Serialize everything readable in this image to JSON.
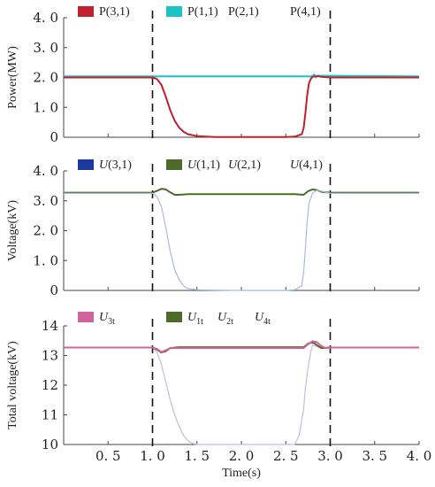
{
  "chart_data": [
    {
      "type": "line",
      "ylabel": "Power(MW)",
      "xlim": [
        0,
        4
      ],
      "ylim": [
        0,
        4
      ],
      "yticks": [
        "0",
        "1. 0",
        "2. 0",
        "3. 0",
        "4. 0"
      ],
      "event_lines_x": [
        1.0,
        3.0
      ],
      "legend": [
        {
          "key": "P",
          "sub": "(3,1)",
          "color": "#c0202b"
        },
        {
          "key": "P",
          "sub": "(1,1)",
          "color": "#19c3c8"
        },
        {
          "key": "P",
          "sub": "(2,1)",
          "color": ""
        },
        {
          "key": "P",
          "sub": "(4,1)",
          "color": ""
        }
      ],
      "series": [
        {
          "color": "#19c3c8",
          "x": [
            0,
            2.8,
            2.82,
            2.84,
            2.86,
            4
          ],
          "y": [
            2.04,
            2.04,
            2.1,
            2.0,
            2.06,
            2.04
          ]
        },
        {
          "color": "#c0202b",
          "x": [
            0,
            0.9,
            1.0,
            1.05,
            1.1,
            1.15,
            1.2,
            1.25,
            1.3,
            1.35,
            1.4,
            1.5,
            1.6,
            1.7,
            1.8,
            2.0,
            2.5,
            2.6,
            2.68,
            2.7,
            2.72,
            2.74,
            2.76,
            2.78,
            2.8,
            2.85,
            2.9,
            3.0,
            4
          ],
          "y": [
            2.0,
            2.0,
            2.0,
            1.95,
            1.75,
            1.35,
            0.9,
            0.55,
            0.32,
            0.18,
            0.1,
            0.04,
            0.02,
            0.01,
            0.01,
            0.01,
            0.01,
            0.02,
            0.1,
            0.3,
            0.8,
            1.4,
            1.8,
            1.95,
            2.02,
            2.05,
            2.02,
            2.0,
            2.0
          ]
        }
      ]
    },
    {
      "type": "line",
      "ylabel": "Voltage(kV)",
      "xlim": [
        0,
        4
      ],
      "ylim": [
        0,
        4
      ],
      "yticks": [
        "0",
        "1. 0",
        "2. 0",
        "3. 0",
        "4. 0"
      ],
      "event_lines_x": [
        1.0,
        3.0
      ],
      "legend": [
        {
          "key": "U",
          "sub": "(3,1)",
          "color": "#1c3a9e"
        },
        {
          "key": "U",
          "sub": "(1,1)",
          "color": "#4f6b2a"
        },
        {
          "key": "U",
          "sub": "(2,1)",
          "color": ""
        },
        {
          "key": "U",
          "sub": "(4,1)",
          "color": ""
        }
      ],
      "series": [
        {
          "color": "#4f6b2a",
          "x": [
            0,
            1.0,
            1.05,
            1.1,
            1.15,
            1.2,
            1.25,
            1.3,
            1.4,
            2.6,
            2.7,
            2.75,
            2.8,
            2.85,
            2.9,
            3.0,
            4
          ],
          "y": [
            3.27,
            3.27,
            3.33,
            3.4,
            3.38,
            3.28,
            3.2,
            3.2,
            3.22,
            3.22,
            3.2,
            3.32,
            3.38,
            3.36,
            3.3,
            3.27,
            3.27
          ]
        },
        {
          "color": "#aab8e6",
          "x": [
            0,
            1.0,
            1.05,
            1.1,
            1.15,
            1.2,
            1.25,
            1.3,
            1.35,
            1.4,
            1.5,
            1.7,
            2.0,
            2.5,
            2.6,
            2.68,
            2.7,
            2.72,
            2.74,
            2.76,
            2.8,
            2.85,
            2.9,
            3.0,
            4
          ],
          "y": [
            3.25,
            3.25,
            3.15,
            2.8,
            2.1,
            1.3,
            0.7,
            0.35,
            0.15,
            0.06,
            0.02,
            0.01,
            0.0,
            0.0,
            0.02,
            0.15,
            0.6,
            1.4,
            2.3,
            2.9,
            3.25,
            3.35,
            3.32,
            3.25,
            3.25
          ]
        }
      ]
    },
    {
      "type": "line",
      "ylabel": "Total voltage(kV)",
      "xlabel": "Time(s)",
      "xlim": [
        0,
        4
      ],
      "ylim": [
        10,
        14
      ],
      "xticks": [
        "0. 5",
        "1. 0",
        "1. 5",
        "2. 0",
        "2. 5",
        "3. 0",
        "3. 5",
        "4. 0"
      ],
      "yticks": [
        "10",
        "11",
        "12",
        "13",
        "14"
      ],
      "event_lines_x": [
        1.0,
        3.0
      ],
      "legend": [
        {
          "key": "U",
          "sub": "3t",
          "color": "#d0639c"
        },
        {
          "key": "U",
          "sub": "1t",
          "color": "#4f6b2a"
        },
        {
          "key": "U",
          "sub": "2t",
          "color": ""
        },
        {
          "key": "U",
          "sub": "4t",
          "color": ""
        }
      ],
      "series": [
        {
          "color": "#c9b9dc",
          "x": [
            0,
            1.0,
            1.05,
            1.1,
            1.15,
            1.2,
            1.25,
            1.3,
            1.35,
            1.4,
            1.45,
            1.5,
            1.6,
            2.6,
            2.65,
            2.7,
            2.72,
            2.75,
            2.78,
            2.8,
            2.85,
            2.9,
            3.0,
            4
          ],
          "y": [
            13.27,
            13.27,
            13.1,
            12.7,
            12.1,
            11.5,
            11.0,
            10.6,
            10.3,
            10.12,
            10.04,
            10.0,
            10.0,
            10.0,
            10.3,
            11.2,
            11.9,
            12.6,
            13.1,
            13.35,
            13.3,
            13.25,
            13.27,
            13.27
          ]
        },
        {
          "color": "#4f6b2a",
          "x": [
            0,
            1.0,
            1.05,
            1.1,
            1.15,
            1.2,
            1.3,
            2.7,
            2.75,
            2.8,
            2.85,
            2.9,
            3.0,
            4
          ],
          "y": [
            13.27,
            13.27,
            13.2,
            13.1,
            13.15,
            13.25,
            13.28,
            13.28,
            13.4,
            13.45,
            13.35,
            13.25,
            13.27,
            13.27
          ]
        },
        {
          "color": "#d0639c",
          "x": [
            0,
            1.0,
            1.05,
            1.1,
            1.15,
            1.2,
            1.3,
            2.7,
            2.75,
            2.8,
            2.85,
            2.9,
            2.95,
            3.0,
            4
          ],
          "y": [
            13.27,
            13.27,
            13.22,
            13.12,
            13.18,
            13.25,
            13.25,
            13.25,
            13.38,
            13.48,
            13.45,
            13.32,
            13.25,
            13.27,
            13.27
          ]
        }
      ]
    }
  ]
}
